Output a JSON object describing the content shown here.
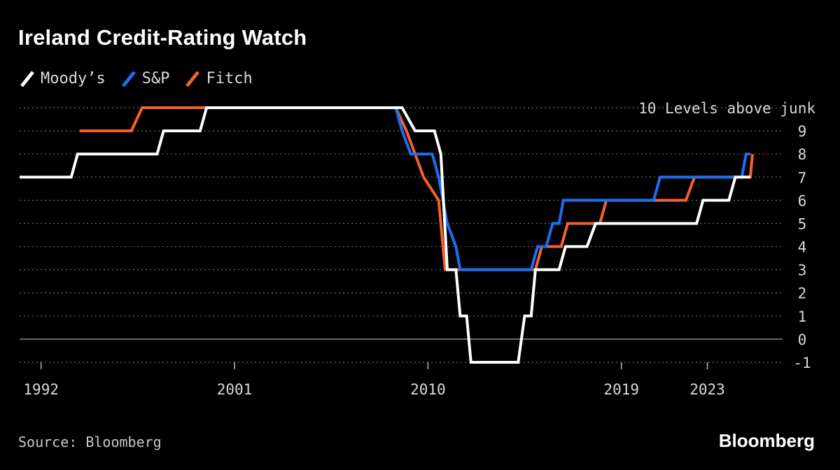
{
  "chart_data": {
    "type": "line",
    "step": true,
    "title": "Ireland Credit-Rating Watch",
    "unit_label": "10 Levels above junk",
    "xlabel": "",
    "ylabel": "Levels above junk",
    "xlim": [
      1991,
      2026.5
    ],
    "ylim": [
      -1,
      10
    ],
    "yticks": [
      10,
      9,
      8,
      7,
      6,
      5,
      4,
      3,
      2,
      1,
      0,
      -1
    ],
    "ytick_labels": [
      "9",
      "8",
      "7",
      "6",
      "5",
      "4",
      "3",
      "2",
      "1",
      "0",
      "-1"
    ],
    "xticks": [
      1992,
      2001,
      2010,
      2019,
      2023
    ],
    "xtick_labels": [
      "1992",
      "2001",
      "2010",
      "2019",
      "2023"
    ],
    "series": [
      {
        "name": "Fitch",
        "color": "#f4612c",
        "points": [
          [
            1993.8,
            9
          ],
          [
            1996.2,
            9
          ],
          [
            1996.7,
            10
          ],
          [
            2008.5,
            10
          ],
          [
            2009.0,
            9
          ],
          [
            2009.8,
            7
          ],
          [
            2010.5,
            6
          ],
          [
            2010.8,
            3
          ],
          [
            2015.0,
            3
          ],
          [
            2015.3,
            4
          ],
          [
            2016.2,
            4
          ],
          [
            2016.5,
            5
          ],
          [
            2018.0,
            5
          ],
          [
            2018.3,
            6
          ],
          [
            2022.0,
            6
          ],
          [
            2022.4,
            7
          ],
          [
            2025.0,
            7
          ],
          [
            2025.1,
            8
          ]
        ]
      },
      {
        "name": "S&P",
        "color": "#1b6ef3",
        "points": [
          [
            2002.0,
            10
          ],
          [
            2008.5,
            10
          ],
          [
            2008.8,
            9
          ],
          [
            2009.2,
            8
          ],
          [
            2010.2,
            8
          ],
          [
            2010.5,
            7
          ],
          [
            2010.9,
            5
          ],
          [
            2011.3,
            4
          ],
          [
            2011.5,
            3
          ],
          [
            2014.8,
            3
          ],
          [
            2015.1,
            4
          ],
          [
            2015.5,
            4
          ],
          [
            2015.8,
            5
          ],
          [
            2016.1,
            5
          ],
          [
            2016.3,
            6
          ],
          [
            2020.5,
            6
          ],
          [
            2020.8,
            7
          ],
          [
            2024.6,
            7
          ],
          [
            2024.8,
            8
          ],
          [
            2025.0,
            8
          ]
        ]
      },
      {
        "name": "Moody’s",
        "color": "#ffffff",
        "points": [
          [
            1991.0,
            7
          ],
          [
            1993.4,
            7
          ],
          [
            1993.7,
            8
          ],
          [
            1997.4,
            8
          ],
          [
            1997.7,
            9
          ],
          [
            1999.4,
            9
          ],
          [
            1999.7,
            10
          ],
          [
            2008.8,
            10
          ],
          [
            2009.4,
            9
          ],
          [
            2010.3,
            9
          ],
          [
            2010.6,
            8
          ],
          [
            2010.9,
            3
          ],
          [
            2011.3,
            3
          ],
          [
            2011.5,
            1
          ],
          [
            2011.8,
            1
          ],
          [
            2012.0,
            -1
          ],
          [
            2014.2,
            -1
          ],
          [
            2014.5,
            1
          ],
          [
            2014.8,
            1
          ],
          [
            2015.0,
            3
          ],
          [
            2016.1,
            3
          ],
          [
            2016.4,
            4
          ],
          [
            2017.4,
            4
          ],
          [
            2017.8,
            5
          ],
          [
            2022.5,
            5
          ],
          [
            2022.8,
            6
          ],
          [
            2024.0,
            6
          ],
          [
            2024.3,
            7
          ],
          [
            2025.0,
            7
          ]
        ]
      }
    ],
    "legend_order": [
      "Moody’s",
      "S&P",
      "Fitch"
    ]
  },
  "source": "Source: Bloomberg",
  "brand": "Bloomberg"
}
